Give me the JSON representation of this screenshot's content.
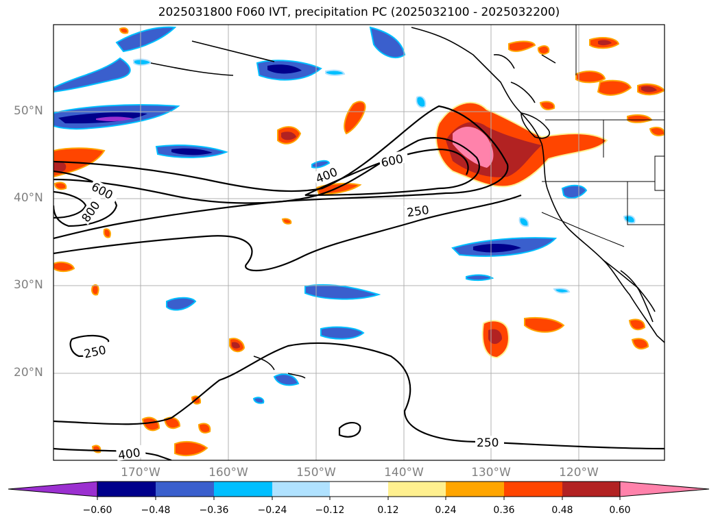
{
  "title": "2025031800 F060 IVT, precipitation PC (2025032100 - 2025032200)",
  "lat_labels": [
    "50°N",
    "40°N",
    "30°N",
    "20°N"
  ],
  "lon_labels": [
    "170°W",
    "160°W",
    "150°W",
    "140°W",
    "130°W",
    "120°W"
  ],
  "contour_labels": [
    "400",
    "600",
    "600",
    "800",
    "250",
    "250",
    "250",
    "400"
  ],
  "colorbar": {
    "ticks": [
      "−0.60",
      "−0.48",
      "−0.36",
      "−0.24",
      "−0.12",
      "0.12",
      "0.24",
      "0.36",
      "0.48",
      "0.60"
    ],
    "colors": [
      "#9b30d0",
      "#00008b",
      "#3a5fcd",
      "#00bfff",
      "#b0e2ff",
      "#ffffff",
      "#fff08f",
      "#ffa500",
      "#ff4500",
      "#b22222",
      "#ff82ab"
    ]
  },
  "palette": {
    "neg_strong": "#9b30d0",
    "neg_dark": "#00008b",
    "neg_mid": "#3a5fcd",
    "neg_light": "#00bfff",
    "neg_pale": "#b0e2ff",
    "pos_pale": "#fff08f",
    "pos_orange": "#ffa500",
    "pos_red": "#ff4500",
    "pos_dark": "#b22222",
    "pos_pink": "#ff82ab"
  }
}
